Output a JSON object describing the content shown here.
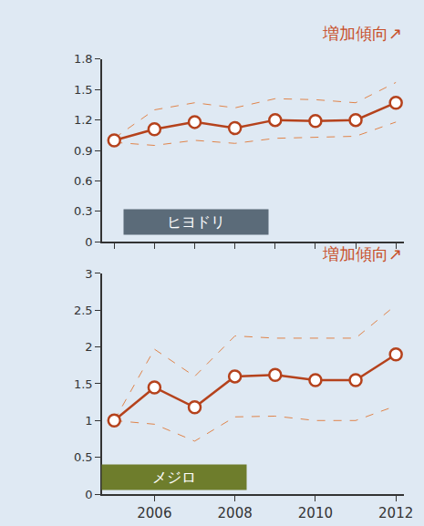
{
  "chart_data": [
    {
      "type": "line",
      "label": "ヒヨドリ",
      "annotation": "増加傾向↗",
      "x": [
        2005,
        2006,
        2007,
        2008,
        2009,
        2010,
        2011,
        2012
      ],
      "values": [
        1.0,
        1.11,
        1.18,
        1.12,
        1.2,
        1.19,
        1.2,
        1.37
      ],
      "upper": [
        1.02,
        1.3,
        1.37,
        1.32,
        1.41,
        1.4,
        1.37,
        1.57
      ],
      "lower": [
        0.98,
        0.95,
        1.0,
        0.97,
        1.02,
        1.03,
        1.04,
        1.18
      ],
      "xlim": [
        2004.7,
        2012.2
      ],
      "xticks": [
        2005,
        2006,
        2007,
        2008,
        2009,
        2010,
        2011,
        2012
      ],
      "ylim": [
        0,
        1.8
      ],
      "yticks": [
        0,
        0.3,
        0.6,
        0.9,
        1.2,
        1.5,
        1.8
      ],
      "tick_labels": "y",
      "grid": false,
      "color": "#b5421c",
      "band_color": "#e0844a",
      "label_color": "#5b6b79",
      "marker": "circle-open",
      "line_style": "solid"
    },
    {
      "type": "line",
      "label": "メジロ",
      "annotation": "増加傾向↗",
      "x": [
        2005,
        2006,
        2007,
        2008,
        2009,
        2010,
        2011,
        2012
      ],
      "values": [
        1.0,
        1.45,
        1.18,
        1.6,
        1.62,
        1.55,
        1.55,
        1.9
      ],
      "upper": [
        1.0,
        1.97,
        1.6,
        2.15,
        2.12,
        2.12,
        2.12,
        2.57
      ],
      "lower": [
        1.0,
        0.95,
        0.72,
        1.05,
        1.06,
        1.0,
        1.0,
        1.2
      ],
      "xlim": [
        2004.7,
        2012.2
      ],
      "xticks": [
        2006,
        2008,
        2010,
        2012
      ],
      "ylim": [
        0,
        3
      ],
      "yticks": [
        0,
        0.5,
        1,
        1.5,
        2,
        2.5,
        3
      ],
      "grid": false,
      "color": "#b5421c",
      "band_color": "#e0844a",
      "label_color": "#6e7d2c",
      "marker": "circle-open",
      "line_style": "solid"
    }
  ]
}
